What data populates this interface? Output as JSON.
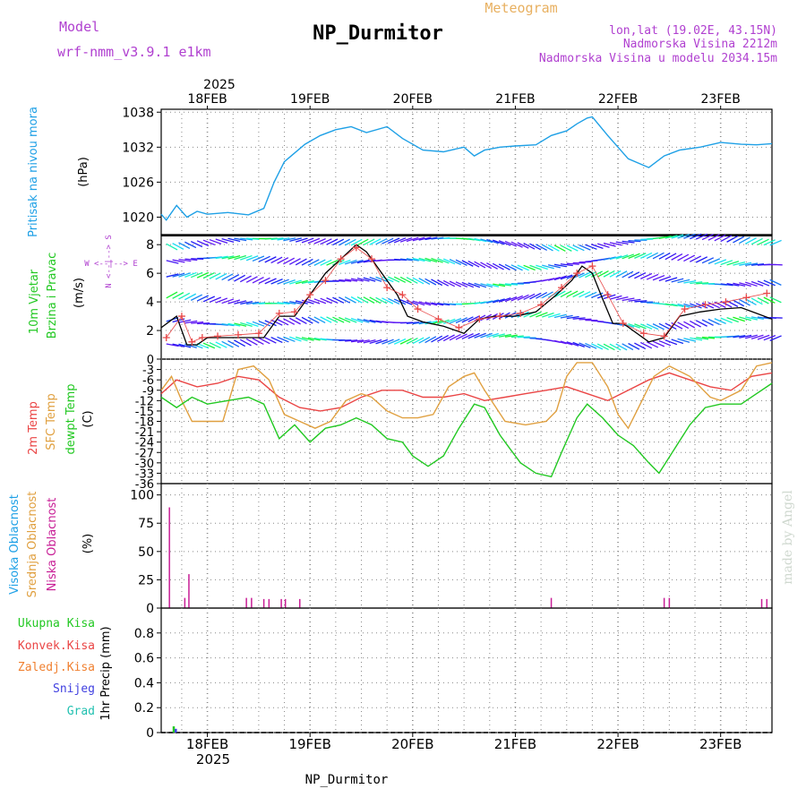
{
  "header": {
    "model_label": "Model",
    "model_name": "wrf-nmm_v3.9.1  e1km",
    "title": "NP_Durmitor",
    "meteogram_label": "Meteogram",
    "lonlat": "lon,lat (19.02E, 43.15N)",
    "altitude": "Nadmorska Visina 2212m",
    "model_altitude": "Nadmorska Visina u modelu 2034.15m",
    "footer": "NP_Durmitor",
    "credit": "made by Angel"
  },
  "colors": {
    "pressure": "#1ea0e6",
    "wind_label": "#22c822",
    "wind_speed": "#000000",
    "wind_gust": "#e84848",
    "t2m": "#ea4545",
    "sfc": "#e0a040",
    "dew": "#22c822",
    "high_cloud": "#1ea0e6",
    "mid_cloud": "#e0a040",
    "low_cloud": "#c81e96",
    "magenta_text": "#b040d0",
    "orange_text": "#e8b060",
    "grid": "#888888"
  },
  "chart_data": [
    {
      "type": "line",
      "id": "pressure",
      "ylabel": "Pritisak na nivou mora",
      "unit": "(hPa)",
      "ylim": [
        1017,
        1038.5
      ],
      "ticks": [
        1020,
        1026,
        1032,
        1038
      ],
      "xlim_days": [
        17.55,
        23.5
      ],
      "date_ticks": [
        "18FEB",
        "19FEB",
        "20FEB",
        "21FEB",
        "22FEB",
        "23FEB"
      ],
      "year": "2025",
      "series": [
        {
          "x": [
            17.55,
            17.6,
            17.7,
            17.8,
            17.9,
            18.0,
            18.2,
            18.4,
            18.55,
            18.65,
            18.75,
            18.85,
            18.95,
            19.1,
            19.25,
            19.4,
            19.55,
            19.75,
            19.9,
            20.1,
            20.3,
            20.5,
            20.6,
            20.7,
            20.85,
            21.0,
            21.2,
            21.35,
            21.5,
            21.6,
            21.7,
            21.75,
            21.9,
            22.1,
            22.3,
            22.45,
            22.6,
            22.8,
            23.0,
            23.2,
            23.35,
            23.5
          ],
          "y": [
            1020.5,
            1019.5,
            1022,
            1020,
            1021,
            1020.5,
            1020.8,
            1020.4,
            1021.5,
            1026,
            1029.5,
            1031,
            1032.5,
            1034,
            1035,
            1035.5,
            1034.5,
            1035.5,
            1033.5,
            1031.5,
            1031.2,
            1032,
            1030.5,
            1031.5,
            1032,
            1032.2,
            1032.4,
            1034,
            1034.8,
            1036,
            1037,
            1037.2,
            1034,
            1030,
            1028.5,
            1030.5,
            1031.5,
            1032,
            1032.8,
            1032.5,
            1032.4,
            1032.6
          ]
        }
      ]
    },
    {
      "type": "line",
      "id": "wind",
      "ylabel_1": "10m Vjetar",
      "ylabel_2": "Brzina i Pravac",
      "unit": "(m/s)",
      "compass_ns": "N <--|--> S",
      "compass_we": "W <--|--> E",
      "ylim": [
        0,
        8.7
      ],
      "ticks": [
        2,
        4,
        6,
        8
      ],
      "series": [
        {
          "name": "speed",
          "x": [
            17.55,
            17.7,
            17.8,
            17.9,
            18.0,
            18.2,
            18.4,
            18.55,
            18.7,
            18.85,
            19.0,
            19.15,
            19.3,
            19.45,
            19.55,
            19.7,
            19.85,
            19.95,
            20.1,
            20.3,
            20.5,
            20.65,
            20.8,
            21.0,
            21.2,
            21.4,
            21.55,
            21.65,
            21.75,
            21.85,
            21.95,
            22.05,
            22.3,
            22.45,
            22.6,
            22.8,
            23.0,
            23.2,
            23.35,
            23.5
          ],
          "y": [
            2.2,
            3,
            1,
            1,
            1.5,
            1.5,
            1.5,
            1.5,
            3,
            3,
            4.5,
            6,
            7,
            8,
            7.5,
            6,
            4.5,
            3,
            2.6,
            2.3,
            1.8,
            2.8,
            3,
            3,
            3.3,
            4.5,
            5.5,
            6.5,
            6,
            4.2,
            2.5,
            2.5,
            1.2,
            1.5,
            3,
            3.3,
            3.5,
            3.6,
            3.2,
            2.8
          ]
        },
        {
          "name": "gust",
          "x": [
            17.6,
            17.75,
            17.85,
            17.95,
            18.1,
            18.3,
            18.5,
            18.7,
            18.85,
            19.0,
            19.15,
            19.3,
            19.45,
            19.6,
            19.75,
            19.9,
            20.05,
            20.25,
            20.45,
            20.65,
            20.85,
            21.05,
            21.25,
            21.45,
            21.6,
            21.75,
            21.9,
            22.05,
            22.25,
            22.45,
            22.65,
            22.85,
            23.05,
            23.25,
            23.45
          ],
          "y": [
            1.5,
            3,
            1.2,
            1.5,
            1.6,
            1.7,
            1.8,
            3.2,
            3.3,
            4.5,
            5.5,
            7,
            7.8,
            7,
            5,
            4.5,
            3.5,
            2.8,
            2.2,
            2.8,
            3,
            3.2,
            3.8,
            5,
            6,
            6.5,
            4.5,
            2.5,
            1.8,
            1.6,
            3.5,
            3.8,
            4,
            4.3,
            4.6
          ]
        }
      ]
    },
    {
      "type": "line",
      "id": "temperature",
      "ylabels": [
        "2m Temp",
        "SFC Temp",
        "dewpt Temp"
      ],
      "unit": "(C)",
      "ylim": [
        -36,
        0
      ],
      "ticks": [
        0,
        -3,
        -6,
        -9,
        -12,
        -15,
        -18,
        -21,
        -24,
        -27,
        -30,
        -33,
        -36
      ],
      "series": [
        {
          "name": "2m Temp",
          "x": [
            17.55,
            17.7,
            17.9,
            18.1,
            18.3,
            18.5,
            18.7,
            18.9,
            19.1,
            19.3,
            19.5,
            19.7,
            19.9,
            20.1,
            20.3,
            20.5,
            20.7,
            20.9,
            21.1,
            21.3,
            21.5,
            21.7,
            21.9,
            22.1,
            22.3,
            22.5,
            22.7,
            22.9,
            23.1,
            23.3,
            23.5
          ],
          "y": [
            -10,
            -6,
            -8,
            -7,
            -5,
            -6,
            -11,
            -14,
            -15,
            -14,
            -11,
            -9,
            -9,
            -11,
            -11,
            -10,
            -12,
            -11,
            -10,
            -9,
            -8,
            -10,
            -12,
            -9,
            -6,
            -4,
            -6,
            -8,
            -9,
            -5,
            -4
          ]
        },
        {
          "name": "SFC Temp",
          "x": [
            17.55,
            17.65,
            17.75,
            17.85,
            18.0,
            18.15,
            18.3,
            18.45,
            18.6,
            18.75,
            18.9,
            19.05,
            19.2,
            19.35,
            19.5,
            19.6,
            19.75,
            19.9,
            20.05,
            20.2,
            20.35,
            20.5,
            20.6,
            20.7,
            20.9,
            21.1,
            21.3,
            21.4,
            21.5,
            21.6,
            21.75,
            21.9,
            22.0,
            22.1,
            22.2,
            22.35,
            22.5,
            22.7,
            22.9,
            23.0,
            23.2,
            23.35,
            23.5
          ],
          "y": [
            -9,
            -5,
            -12,
            -18,
            -18,
            -18,
            -3,
            -2,
            -6,
            -16,
            -18,
            -20,
            -18,
            -12,
            -10,
            -11,
            -15,
            -17,
            -17,
            -16,
            -8,
            -5,
            -4,
            -9,
            -18,
            -19,
            -18,
            -15,
            -5,
            -1,
            -1,
            -8,
            -16,
            -20,
            -14,
            -5,
            -2,
            -5,
            -11,
            -12,
            -9,
            -2,
            -1
          ]
        },
        {
          "name": "dewpt Temp",
          "x": [
            17.55,
            17.7,
            17.85,
            18.0,
            18.2,
            18.4,
            18.55,
            18.7,
            18.85,
            19.0,
            19.15,
            19.3,
            19.45,
            19.6,
            19.75,
            19.9,
            20.0,
            20.15,
            20.3,
            20.45,
            20.6,
            20.7,
            20.85,
            20.95,
            21.05,
            21.2,
            21.35,
            21.45,
            21.6,
            21.7,
            21.85,
            22.0,
            22.15,
            22.3,
            22.4,
            22.55,
            22.7,
            22.85,
            23.0,
            23.2,
            23.35,
            23.5
          ],
          "y": [
            -11,
            -14,
            -11,
            -13,
            -12,
            -11,
            -13,
            -23,
            -19,
            -24,
            -20,
            -19,
            -17,
            -19,
            -23,
            -24,
            -28,
            -31,
            -28,
            -20,
            -13,
            -14,
            -22,
            -26,
            -30,
            -33,
            -34,
            -27,
            -17,
            -13,
            -17,
            -22,
            -25,
            -30,
            -33,
            -26,
            -19,
            -14,
            -13,
            -13,
            -10,
            -7
          ]
        }
      ]
    },
    {
      "type": "bar",
      "id": "clouds",
      "ylabels": [
        "Visoka Oblacnost",
        "Srednja Oblacnost",
        "Niska Oblacnost"
      ],
      "unit": "(%)",
      "ylim": [
        0,
        110
      ],
      "ticks": [
        0,
        25,
        50,
        75,
        100
      ],
      "series": [
        {
          "name": "Niska Oblacnost",
          "x": [
            17.63,
            17.78,
            17.82,
            18.38,
            18.43,
            18.55,
            18.6,
            18.72,
            18.76,
            18.9,
            21.35,
            22.45,
            22.5,
            23.4,
            23.45
          ],
          "y": [
            89,
            9,
            30,
            9,
            9,
            8,
            8,
            8,
            8,
            8,
            9,
            9,
            9,
            8,
            8
          ]
        },
        {
          "name": "Srednja Oblacnost",
          "x": [],
          "y": []
        },
        {
          "name": "Visoka Oblacnost",
          "x": [],
          "y": []
        }
      ]
    },
    {
      "type": "bar",
      "id": "precip",
      "ylabels": [
        "Ukupna  Kisa",
        "Konvek.Kisa",
        "Zaledj.Kisa",
        "Snijeg",
        "Grad"
      ],
      "ylabel_right": "1hr Precip (mm)",
      "ylim": [
        0,
        1.0
      ],
      "ticks": [
        0,
        0.2,
        0.4,
        0.6,
        0.8
      ],
      "series": [
        {
          "name": "Ukupna  Kisa",
          "x": [
            17.67
          ],
          "y": [
            0.05
          ]
        },
        {
          "name": "Snijeg",
          "x": [
            17.69
          ],
          "y": [
            0.03
          ]
        }
      ]
    }
  ]
}
